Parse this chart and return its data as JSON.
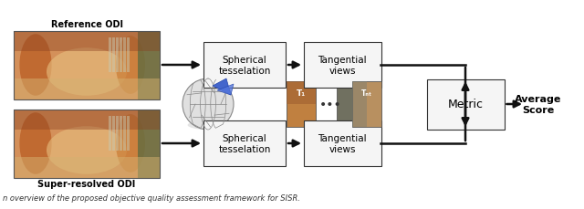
{
  "caption": "n overview of the proposed objective quality assessment framework for SISR.",
  "bg_color": "#ffffff",
  "label_super": "Super-resolved ODI",
  "label_ref": "Reference ODI",
  "box1_text": "Spherical\ntesselation",
  "box2_text": "Tangential\nviews",
  "box3_text": "Spherical\ntesselation",
  "box4_text": "Tangential\nviews",
  "box5_text": "Metric",
  "output_text": "Average\nScore",
  "t1_label": "T₁",
  "tnt_label": "Tₙₜ",
  "dots": "•••",
  "box_facecolor": "#f5f5f5",
  "box_edgecolor": "#333333",
  "arrow_color": "#111111",
  "figsize": [
    6.4,
    2.3
  ],
  "dpi": 100
}
